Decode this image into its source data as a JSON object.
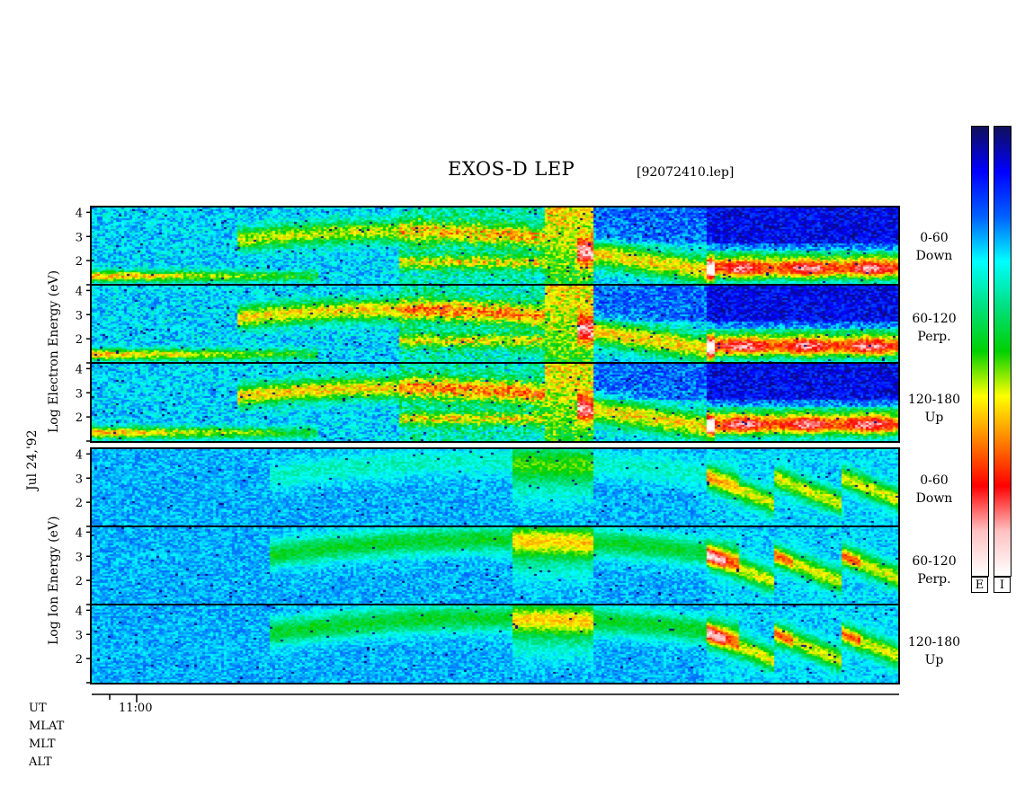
{
  "header": {
    "title": "EXOS-D LEP",
    "filename": "[92072410.lep]"
  },
  "side_labels": {
    "date": "Jul 24,'92",
    "electron_axis": "Log Electron Energy (eV)",
    "ion_axis": "Log Ion Energy (eV)"
  },
  "panels": [
    {
      "species": "electron",
      "angle": "0-60",
      "dir": "Down"
    },
    {
      "species": "electron",
      "angle": "60-120",
      "dir": "Perp."
    },
    {
      "species": "electron",
      "angle": "120-180",
      "dir": "Up"
    },
    {
      "species": "ion",
      "angle": "0-60",
      "dir": "Down"
    },
    {
      "species": "ion",
      "angle": "60-120",
      "dir": "Perp."
    },
    {
      "species": "ion",
      "angle": "120-180",
      "dir": "Up"
    }
  ],
  "time_axis": {
    "row_labels": [
      "UT",
      "MLAT",
      "MLT",
      "ALT"
    ],
    "ticks": [
      "11:00"
    ]
  },
  "colorbars": {
    "labels": [
      "E",
      "I"
    ],
    "colors": [
      "#10105a",
      "#0000ff",
      "#0060ff",
      "#00ffff",
      "#00e080",
      "#00d000",
      "#ffff00",
      "#ff8000",
      "#ff0000",
      "#ffc0c0",
      "#ffffff"
    ]
  },
  "chart_data": {
    "type": "heatmap",
    "title": "EXOS-D LEP",
    "xlabel": "UT",
    "ylabel": "Log Energy (eV)",
    "x_ticks": [
      "11:00"
    ],
    "y_ticks": [
      2,
      3,
      4
    ],
    "ylim": [
      1,
      4.2
    ],
    "series": [
      {
        "name": "0-60 Down"
      },
      {
        "name": "60-120 Perp."
      },
      {
        "name": "120-180 Up"
      }
    ]
  }
}
